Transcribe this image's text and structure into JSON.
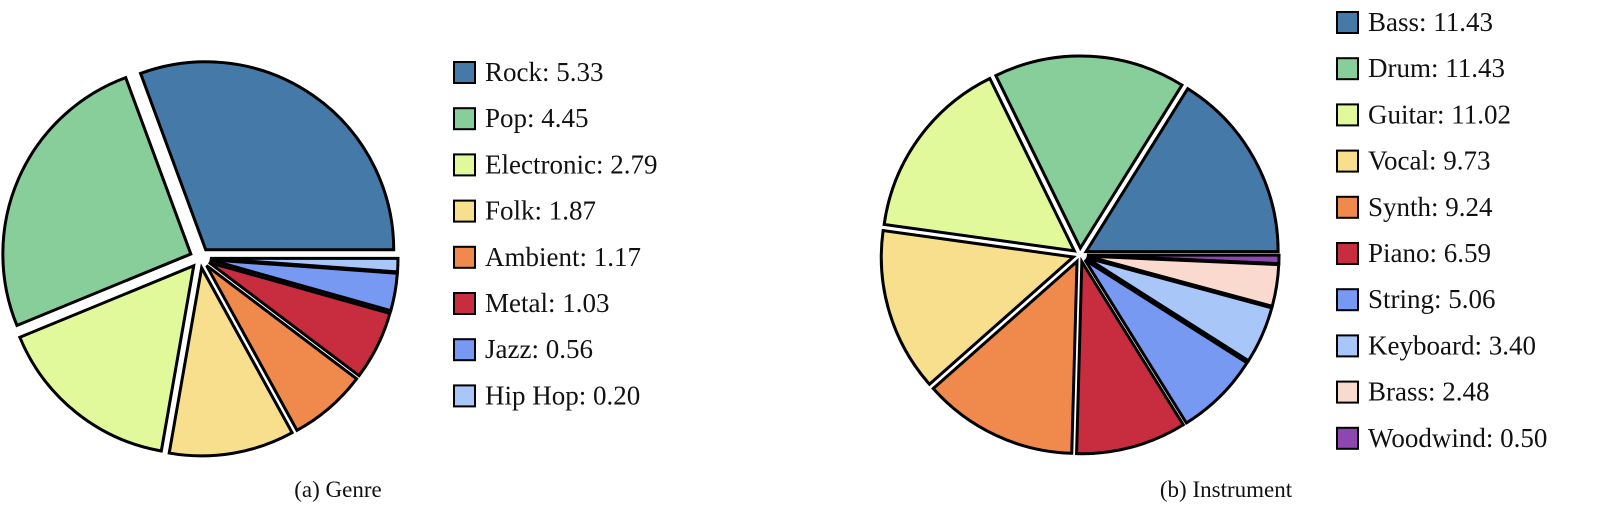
{
  "chart_data": [
    {
      "type": "pie",
      "caption": "(a) Genre",
      "categories": [
        "Rock",
        "Pop",
        "Electronic",
        "Folk",
        "Ambient",
        "Metal",
        "Jazz",
        "Hip Hop"
      ],
      "values": [
        5.33,
        4.45,
        2.79,
        1.87,
        1.17,
        1.03,
        0.56,
        0.2
      ],
      "legend_labels": [
        "Rock: 5.33",
        "Pop: 4.45",
        "Electronic: 2.79",
        "Folk: 1.87",
        "Ambient: 1.17",
        "Metal: 1.03",
        "Jazz: 0.56",
        "Hip Hop: 0.20"
      ],
      "colors": [
        "#4579a8",
        "#88ce9b",
        "#e1f89b",
        "#f8df8e",
        "#ef8a4c",
        "#c72d3f",
        "#7799f1",
        "#a9c6f9"
      ],
      "exploded": true,
      "legend_position": "right"
    },
    {
      "type": "pie",
      "caption": "(b) Instrument",
      "categories": [
        "Bass",
        "Drum",
        "Guitar",
        "Vocal",
        "Synth",
        "Piano",
        "String",
        "Keyboard",
        "Brass",
        "Woodwind"
      ],
      "values": [
        11.43,
        11.43,
        11.02,
        9.73,
        9.24,
        6.59,
        5.06,
        3.4,
        2.48,
        0.5
      ],
      "legend_labels": [
        "Bass: 11.43",
        "Drum: 11.43",
        "Guitar: 11.02",
        "Vocal: 9.73",
        "Synth: 9.24",
        "Piano: 6.59",
        "String: 5.06",
        "Keyboard: 3.40",
        "Brass: 2.48",
        "Woodwind: 0.50"
      ],
      "colors": [
        "#4579a8",
        "#88ce9b",
        "#e1f89b",
        "#f8df8e",
        "#ef8a4c",
        "#c72d3f",
        "#7799f1",
        "#a9c6f9",
        "#fad9cf",
        "#8e46b0"
      ],
      "exploded": true,
      "legend_position": "right"
    }
  ]
}
